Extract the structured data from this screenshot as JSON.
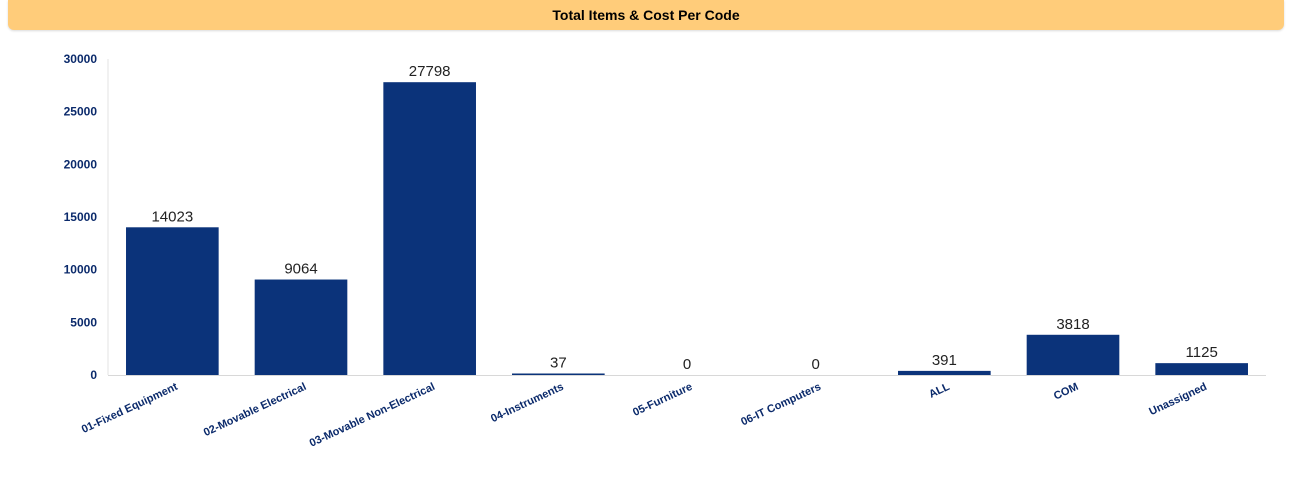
{
  "header": {
    "title": "Total Items & Cost Per Code"
  },
  "colors": {
    "header_bg": "#FFCC7A",
    "bar": "#0B337A",
    "axis_text": "#0B2A6B"
  },
  "chart_data": {
    "type": "bar",
    "title": "Total Items & Cost Per Code",
    "categories": [
      "01-Fixed Equipment",
      "02-Movable Electrical",
      "03-Movable Non-Electrical",
      "04-Instruments",
      "05-Furniture",
      "06-IT Computers",
      "ALL",
      "COM",
      "Unassigned"
    ],
    "values": [
      14023,
      9064,
      27798,
      37,
      0,
      0,
      391,
      3818,
      1125
    ],
    "ylim": [
      0,
      30000
    ],
    "yticks": [
      "0",
      "5000",
      "10000",
      "15000",
      "20000",
      "25000",
      "30000"
    ],
    "xlabel": "",
    "ylabel": "",
    "grid": false,
    "legend": "none"
  }
}
